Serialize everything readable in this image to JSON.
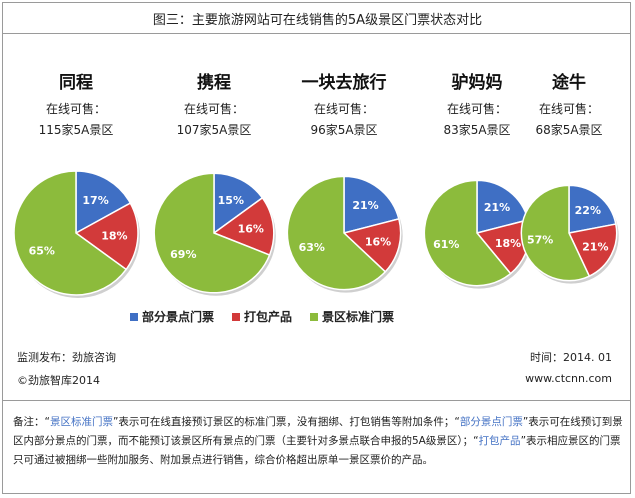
{
  "title": "图三：主要旅游网站可在线销售的5A级景区门票状态对比",
  "colors": {
    "部分景点门票": "#3f6fc4",
    "打包产品": "#d23a3a",
    "景区标准门票": "#8cbb3c"
  },
  "chart_data": {
    "type": "pie",
    "title": "图三：主要旅游网站可在线销售的5A级景区门票状态对比",
    "legend": [
      "部分景点门票",
      "打包产品",
      "景区标准门票"
    ],
    "legend_position": "bottom",
    "pies": [
      {
        "name": "同程",
        "subtitle": "在线可售：",
        "count_label": "115家5A景区",
        "count": 115,
        "slices": [
          {
            "label": "部分景点门票",
            "value": 17,
            "text": "17%"
          },
          {
            "label": "打包产品",
            "value": 18,
            "text": "18%"
          },
          {
            "label": "景区标准门票",
            "value": 65,
            "text": "65%"
          }
        ]
      },
      {
        "name": "携程",
        "subtitle": "在线可售：",
        "count_label": "107家5A景区",
        "count": 107,
        "slices": [
          {
            "label": "部分景点门票",
            "value": 15,
            "text": "15%"
          },
          {
            "label": "打包产品",
            "value": 16,
            "text": "16%"
          },
          {
            "label": "景区标准门票",
            "value": 69,
            "text": "69%"
          }
        ]
      },
      {
        "name": "一块去旅行",
        "subtitle": "在线可售：",
        "count_label": "96家5A景区",
        "count": 96,
        "slices": [
          {
            "label": "部分景点门票",
            "value": 21,
            "text": "21%"
          },
          {
            "label": "打包产品",
            "value": 16,
            "text": "16%"
          },
          {
            "label": "景区标准门票",
            "value": 63,
            "text": "63%"
          }
        ]
      },
      {
        "name": "驴妈妈",
        "subtitle": "在线可售：",
        "count_label": "83家5A景区",
        "count": 83,
        "slices": [
          {
            "label": "部分景点门票",
            "value": 21,
            "text": "21%"
          },
          {
            "label": "打包产品",
            "value": 18,
            "text": "18%"
          },
          {
            "label": "景区标准门票",
            "value": 61,
            "text": "61%"
          }
        ]
      },
      {
        "name": "途牛",
        "subtitle": "在线可售：",
        "count_label": "68家5A景区",
        "count": 68,
        "slices": [
          {
            "label": "部分景点门票",
            "value": 22,
            "text": "22%"
          },
          {
            "label": "打包产品",
            "value": 21,
            "text": "21%"
          },
          {
            "label": "景区标准门票",
            "value": 57,
            "text": "57%"
          }
        ]
      }
    ]
  },
  "footer": {
    "publisher": "监测发布：劲旅咨询",
    "time": "时间：2014. 01",
    "copyright": "©劲旅智库2014",
    "website": "www.ctcnn.com"
  },
  "note": {
    "p1": "备注：“",
    "q1": "景区标准门票",
    "p2": "”表示可在线直接预订景区的标准门票，没有捆绑、打包销售等附加条件；“",
    "q2": "部分景点门票",
    "p3": "”表示可在线预订到景区内部分景点的门票，而不能预订该景区所有景点的门票（主要针对多景点联合申报的5A级景区）；“",
    "q3": "打包产品",
    "p4": "”表示相应景区的门票只可通过被捆绑一些附加服务、附加景点进行销售，综合价格超出原单一景区票价的产品。"
  }
}
